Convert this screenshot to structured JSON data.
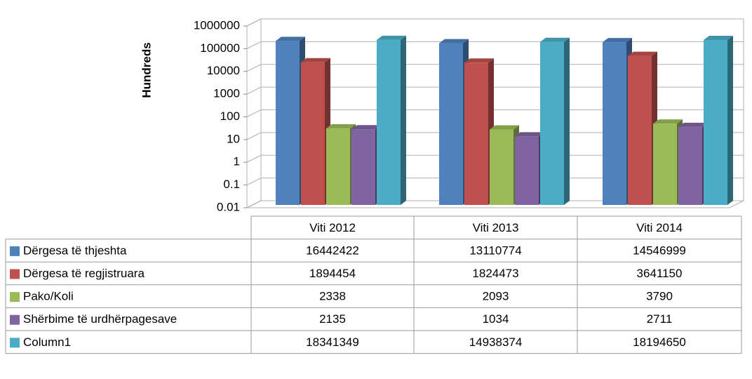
{
  "chart_data": {
    "type": "bar",
    "y_label": "Hundreds",
    "log_scale": true,
    "grid": true,
    "categories": [
      "Viti 2012",
      "Viti 2013",
      "Viti 2014"
    ],
    "series": [
      {
        "name": "Dërgesa të thjeshta",
        "color": "#4f81bd",
        "values": [
          16442422,
          13110774,
          14546999
        ]
      },
      {
        "name": "Dërgesa të regjistruara",
        "color": "#c0504d",
        "values": [
          1894454,
          1824473,
          3641150
        ]
      },
      {
        "name": "Pako/Koli",
        "color": "#9bbb59",
        "values": [
          2338,
          2093,
          3790
        ]
      },
      {
        "name": "Shërbime të urdhërpagesave",
        "color": "#8064a2",
        "values": [
          2135,
          1034,
          2711
        ]
      },
      {
        "name": "Column1",
        "color": "#4bacc6",
        "values": [
          18341349,
          14938374,
          18194650
        ]
      }
    ],
    "ylim": [
      1,
      100000000
    ],
    "yticks": [
      {
        "value": 1,
        "label": "0.01"
      },
      {
        "value": 10,
        "label": "0.1"
      },
      {
        "value": 100,
        "label": "1"
      },
      {
        "value": 1000,
        "label": "10"
      },
      {
        "value": 10000,
        "label": "100"
      },
      {
        "value": 100000,
        "label": "1000"
      },
      {
        "value": 1000000,
        "label": "10000"
      },
      {
        "value": 10000000,
        "label": "100000"
      },
      {
        "value": 100000000,
        "label": "1000000"
      }
    ]
  }
}
